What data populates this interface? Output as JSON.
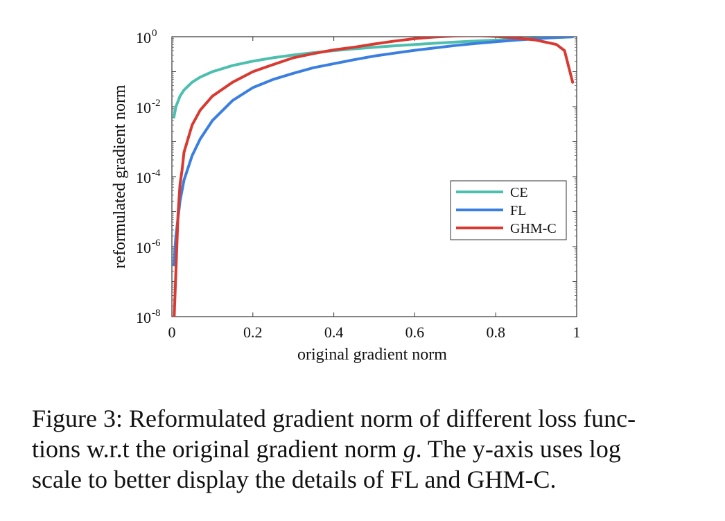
{
  "chart_data": {
    "type": "line",
    "title": "",
    "xlabel": "original gradient norm",
    "ylabel": "reformulated gradient norm",
    "xlim": [
      0,
      1
    ],
    "ylim": [
      1e-08,
      1
    ],
    "yscale": "log",
    "x_ticks": [
      0,
      0.2,
      0.4,
      0.6,
      0.8,
      1
    ],
    "x_tick_labels": [
      "0",
      "0.2",
      "0.4",
      "0.6",
      "0.8",
      "1"
    ],
    "y_ticks": [
      {
        "value": 1,
        "base": "10",
        "exp": "0"
      },
      {
        "value": 0.01,
        "base": "10",
        "exp": "-2"
      },
      {
        "value": 0.0001,
        "base": "10",
        "exp": "-4"
      },
      {
        "value": 1e-06,
        "base": "10",
        "exp": "-6"
      },
      {
        "value": 1e-08,
        "base": "10",
        "exp": "-8"
      }
    ],
    "grid": false,
    "legend_position": "lower-right",
    "series": [
      {
        "name": "CE",
        "color": "#4dbfae",
        "x": [
          0.005,
          0.01,
          0.02,
          0.03,
          0.05,
          0.07,
          0.1,
          0.15,
          0.2,
          0.25,
          0.3,
          0.35,
          0.4,
          0.45,
          0.5,
          0.55,
          0.6,
          0.65,
          0.7,
          0.75,
          0.8,
          0.85,
          0.9,
          0.95,
          0.99
        ],
        "y": [
          0.005,
          0.01,
          0.02,
          0.03,
          0.05,
          0.07,
          0.1,
          0.15,
          0.2,
          0.25,
          0.3,
          0.35,
          0.4,
          0.45,
          0.5,
          0.55,
          0.6,
          0.65,
          0.7,
          0.75,
          0.8,
          0.85,
          0.9,
          0.95,
          0.99
        ]
      },
      {
        "name": "FL",
        "color": "#3a7fe0",
        "x": [
          0.005,
          0.01,
          0.02,
          0.03,
          0.05,
          0.07,
          0.1,
          0.15,
          0.2,
          0.25,
          0.3,
          0.35,
          0.4,
          0.45,
          0.5,
          0.55,
          0.6,
          0.65,
          0.7,
          0.75,
          0.8,
          0.85,
          0.9,
          0.95,
          0.99
        ],
        "y": [
          3e-07,
          2e-06,
          2e-05,
          8e-05,
          0.0004,
          0.0012,
          0.004,
          0.015,
          0.035,
          0.06,
          0.09,
          0.13,
          0.17,
          0.22,
          0.28,
          0.34,
          0.41,
          0.48,
          0.56,
          0.64,
          0.72,
          0.8,
          0.88,
          0.95,
          1.0
        ]
      },
      {
        "name": "GHM-C",
        "color": "#d83a32",
        "x": [
          0.005,
          0.01,
          0.015,
          0.02,
          0.025,
          0.03,
          0.05,
          0.07,
          0.1,
          0.15,
          0.2,
          0.25,
          0.3,
          0.35,
          0.4,
          0.45,
          0.5,
          0.55,
          0.6,
          0.65,
          0.7,
          0.75,
          0.8,
          0.85,
          0.9,
          0.95,
          0.97,
          0.99
        ],
        "y": [
          6e-09,
          2e-07,
          8e-06,
          6e-05,
          0.00015,
          0.0005,
          0.003,
          0.008,
          0.02,
          0.05,
          0.1,
          0.16,
          0.25,
          0.33,
          0.42,
          0.5,
          0.62,
          0.75,
          0.88,
          0.98,
          1.05,
          1.08,
          1.02,
          0.92,
          0.8,
          0.6,
          0.4,
          0.05
        ]
      }
    ]
  },
  "caption": {
    "line1": "Figure 3: Reformulated gradient norm of different loss func-",
    "line2_pre": "tions w.r.t the original gradient norm ",
    "line2_var": "g",
    "line2_post": ". The y-axis uses log",
    "line3": "scale to better display the details of FL and GHM-C."
  }
}
